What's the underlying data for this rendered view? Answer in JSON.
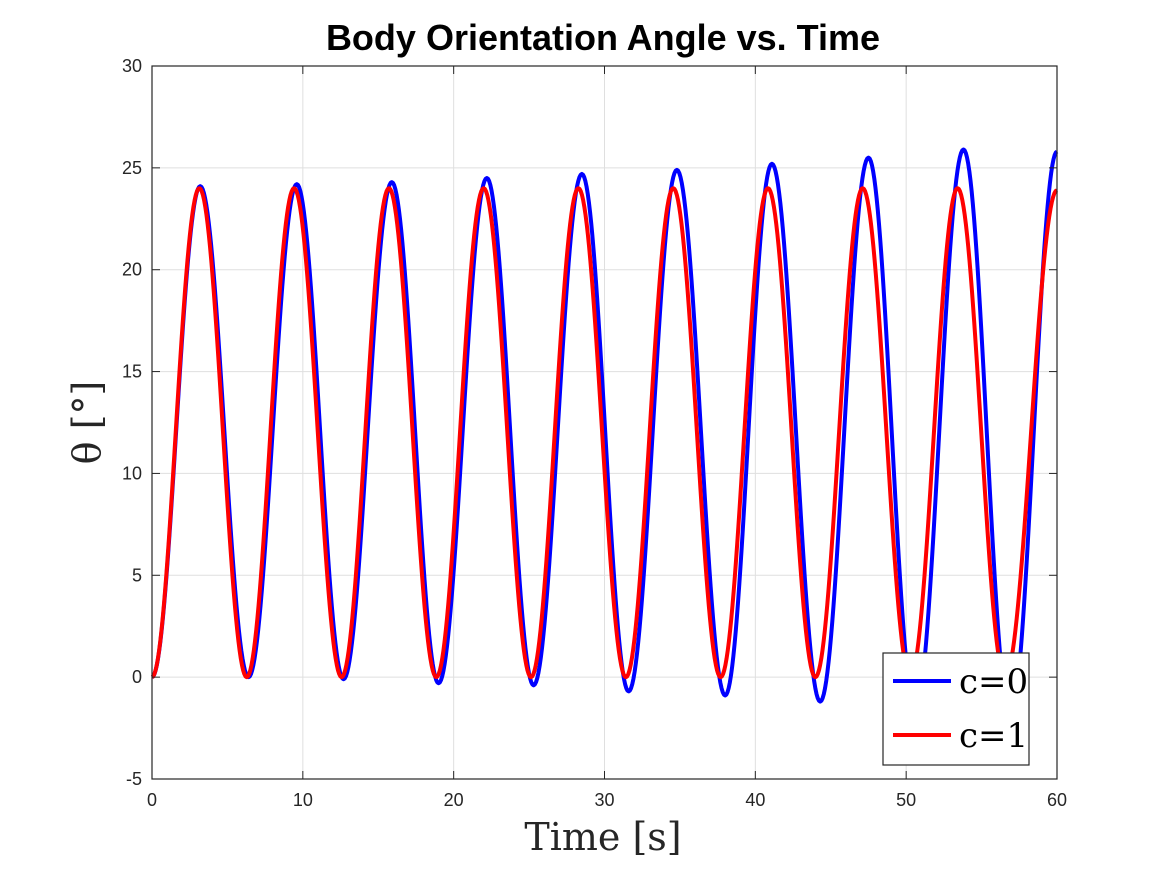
{
  "chart_data": {
    "type": "line",
    "title": "Body Orientation Angle vs. Time",
    "xlabel": "Time [s]",
    "ylabel": "θ [°]",
    "xlim": [
      0,
      60
    ],
    "ylim": [
      -5,
      30
    ],
    "xticks": [
      0,
      10,
      20,
      30,
      40,
      50,
      60
    ],
    "yticks": [
      -5,
      0,
      5,
      10,
      15,
      20,
      25,
      30
    ],
    "grid": true,
    "legend_position": "bottom-right",
    "period_c0_s": 6.33,
    "period_c1_s": 6.28,
    "series": [
      {
        "name": "c=0",
        "color": "#0000ff",
        "description_points": [
          {
            "x": 3.2,
            "y": 24.1
          },
          {
            "x": 6.4,
            "y": 0.0
          },
          {
            "x": 9.6,
            "y": 24.2
          },
          {
            "x": 12.7,
            "y": -0.1
          },
          {
            "x": 15.9,
            "y": 24.3
          },
          {
            "x": 19.0,
            "y": -0.3
          },
          {
            "x": 22.2,
            "y": 24.5
          },
          {
            "x": 25.3,
            "y": -0.4
          },
          {
            "x": 28.5,
            "y": 24.7
          },
          {
            "x": 31.6,
            "y": -0.7
          },
          {
            "x": 34.8,
            "y": 24.9
          },
          {
            "x": 38.0,
            "y": -0.9
          },
          {
            "x": 41.1,
            "y": 25.2
          },
          {
            "x": 44.3,
            "y": -1.2
          },
          {
            "x": 47.5,
            "y": 25.5
          },
          {
            "x": 50.6,
            "y": -1.6
          },
          {
            "x": 53.8,
            "y": 25.9
          },
          {
            "x": 56.9,
            "y": -2.0
          },
          {
            "x": 60.0,
            "y": 25.8
          }
        ]
      },
      {
        "name": "c=1",
        "color": "#ff0000",
        "description_points": [
          {
            "x": 3.14,
            "y": 24.0
          },
          {
            "x": 6.28,
            "y": 0.0
          },
          {
            "x": 9.42,
            "y": 24.0
          },
          {
            "x": 12.57,
            "y": 0.0
          },
          {
            "x": 15.71,
            "y": 24.0
          },
          {
            "x": 18.85,
            "y": 0.0
          },
          {
            "x": 21.99,
            "y": 24.0
          },
          {
            "x": 25.13,
            "y": 0.0
          },
          {
            "x": 28.27,
            "y": 24.0
          },
          {
            "x": 31.42,
            "y": 0.0
          },
          {
            "x": 34.56,
            "y": 24.0
          },
          {
            "x": 37.7,
            "y": 0.0
          },
          {
            "x": 40.84,
            "y": 24.0
          },
          {
            "x": 43.98,
            "y": 0.0
          },
          {
            "x": 47.12,
            "y": 24.0
          },
          {
            "x": 50.27,
            "y": 0.0
          },
          {
            "x": 53.41,
            "y": 24.0
          },
          {
            "x": 56.55,
            "y": 0.0
          },
          {
            "x": 60.0,
            "y": 23.9
          }
        ]
      }
    ]
  }
}
